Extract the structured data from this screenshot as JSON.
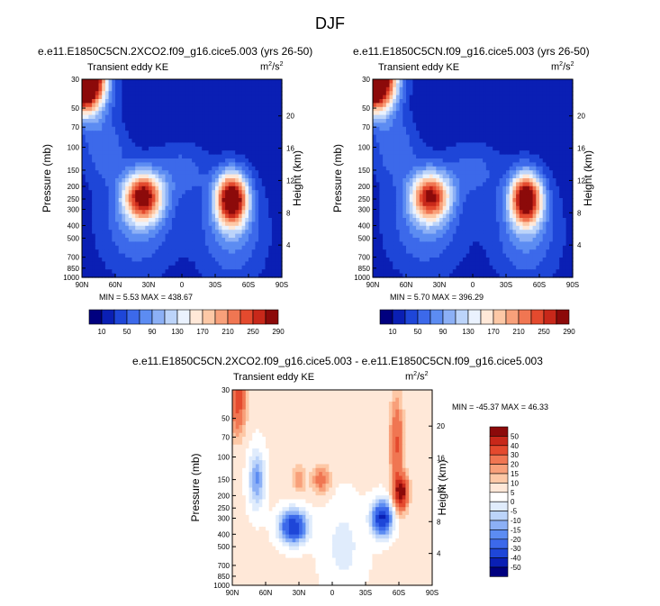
{
  "page": {
    "main_title": "DJF"
  },
  "palettes": {
    "ke": [
      "#00007f",
      "#0a1fb4",
      "#1e46d8",
      "#3c69ea",
      "#5c8cf2",
      "#8cb0f6",
      "#bcd4fa",
      "#eaf2fe",
      "#ffe8d8",
      "#fdc8a6",
      "#f8a07a",
      "#f07652",
      "#e44a2e",
      "#c8281a",
      "#8c0a0a"
    ],
    "diff": [
      "#00007f",
      "#0a1fb4",
      "#1e46d8",
      "#3c69ea",
      "#5c8cf2",
      "#8cb0f6",
      "#bcd4fa",
      "#e0ecfc",
      "#ffffff",
      "#ffe8d8",
      "#fdc8a6",
      "#f8a07a",
      "#f07652",
      "#e44a2e",
      "#c8281a",
      "#8c0a0a"
    ]
  },
  "panels": {
    "p1": {
      "subtitle": "e.e11.E1850C5CN.2XCO2.f09_g16.cice5.003 (yrs 26-50)",
      "left_label": "Transient eddy KE",
      "units": "m",
      "units_sup": "2",
      "units_tail": "/s",
      "units_sup2": "2",
      "stats": "MIN =   5.53  MAX = 438.67"
    },
    "p2": {
      "subtitle": "e.e11.E1850C5CN.f09_g16.cice5.003 (yrs 26-50)",
      "left_label": "Transient eddy KE",
      "units": "m",
      "units_sup": "2",
      "units_tail": "/s",
      "units_sup2": "2",
      "stats": "MIN =   5.70  MAX = 396.29"
    },
    "p3": {
      "subtitle": "e.e11.E1850C5CN.2XCO2.f09_g16.cice5.003 - e.e11.E1850C5CN.f09_g16.cice5.003",
      "left_label": "Transient eddy KE",
      "units": "m",
      "units_sup": "2",
      "units_tail": "/s",
      "units_sup2": "2",
      "stats": "MIN = -45.37  MAX =  46.33"
    }
  },
  "colorbars": {
    "ke": {
      "labels": [
        "10",
        "50",
        "90",
        "130",
        "170",
        "210",
        "250",
        "290"
      ]
    },
    "diff": {
      "labels": [
        "50",
        "40",
        "30",
        "20",
        "15",
        "10",
        "5",
        "0",
        "-5",
        "-10",
        "-15",
        "-20",
        "-30",
        "-40",
        "-50"
      ]
    }
  },
  "chart_data": [
    {
      "type": "heatmap",
      "title": "e.e11.E1850C5CN.2XCO2.f09_g16.cice5.003 (yrs 26-50)",
      "variable": "Transient eddy KE",
      "units": "m2/s2",
      "xlabel": "",
      "ylabel": "Pressure (mb)",
      "ylabel_right": "Height (km)",
      "x_ticks": [
        "90N",
        "60N",
        "30N",
        "0",
        "30S",
        "60S",
        "90S"
      ],
      "y_ticks": [
        "30",
        "50",
        "70",
        "100",
        "150",
        "200",
        "250",
        "300",
        "400",
        "500",
        "700",
        "850",
        "1000"
      ],
      "y_right_ticks": [
        "20",
        "16",
        "12",
        "8",
        "4"
      ],
      "xlim": [
        90,
        -90
      ],
      "ylim": [
        1000,
        30
      ],
      "min": 5.53,
      "max": 438.67,
      "levels": [
        10,
        30,
        50,
        70,
        90,
        110,
        130,
        150,
        170,
        190,
        210,
        230,
        250,
        270,
        290
      ],
      "features": [
        {
          "lat": 85,
          "p": 30,
          "value": 438
        },
        {
          "lat": 35,
          "p": 250,
          "value": 260
        },
        {
          "lat": -45,
          "p": 250,
          "value": 300
        }
      ]
    },
    {
      "type": "heatmap",
      "title": "e.e11.E1850C5CN.f09_g16.cice5.003 (yrs 26-50)",
      "variable": "Transient eddy KE",
      "units": "m2/s2",
      "ylabel": "Pressure (mb)",
      "ylabel_right": "Height (km)",
      "x_ticks": [
        "90N",
        "60N",
        "30N",
        "0",
        "30S",
        "60S",
        "90S"
      ],
      "y_ticks": [
        "30",
        "50",
        "70",
        "100",
        "150",
        "200",
        "250",
        "300",
        "400",
        "500",
        "700",
        "850",
        "1000"
      ],
      "y_right_ticks": [
        "20",
        "16",
        "12",
        "8",
        "4"
      ],
      "xlim": [
        90,
        -90
      ],
      "ylim": [
        1000,
        30
      ],
      "min": 5.7,
      "max": 396.29,
      "levels": [
        10,
        30,
        50,
        70,
        90,
        110,
        130,
        150,
        170,
        190,
        210,
        230,
        250,
        270,
        290
      ],
      "features": [
        {
          "lat": 85,
          "p": 30,
          "value": 396
        },
        {
          "lat": 38,
          "p": 250,
          "value": 240
        },
        {
          "lat": -48,
          "p": 270,
          "value": 290
        }
      ]
    },
    {
      "type": "heatmap",
      "title": "e.e11.E1850C5CN.2XCO2.f09_g16.cice5.003 - e.e11.E1850C5CN.f09_g16.cice5.003",
      "variable": "Transient eddy KE",
      "units": "m2/s2",
      "ylabel": "Pressure (mb)",
      "ylabel_right": "Height (km)",
      "x_ticks": [
        "90N",
        "60N",
        "30N",
        "0",
        "30S",
        "60S",
        "90S"
      ],
      "y_ticks": [
        "30",
        "50",
        "70",
        "100",
        "150",
        "200",
        "250",
        "300",
        "400",
        "500",
        "700",
        "850",
        "1000"
      ],
      "y_right_ticks": [
        "20",
        "16",
        "12",
        "8",
        "4"
      ],
      "xlim": [
        90,
        -90
      ],
      "ylim": [
        1000,
        30
      ],
      "min": -45.37,
      "max": 46.33,
      "levels": [
        -50,
        -40,
        -30,
        -20,
        -15,
        -10,
        -5,
        0,
        5,
        10,
        15,
        20,
        30,
        40,
        50
      ],
      "features": [
        {
          "lat": 85,
          "p": 35,
          "value": 30
        },
        {
          "lat": 35,
          "p": 350,
          "value": -35
        },
        {
          "lat": -45,
          "p": 300,
          "value": -45
        },
        {
          "lat": -62,
          "p": 200,
          "value": 46
        },
        {
          "lat": 10,
          "p": 150,
          "value": 20
        }
      ]
    }
  ]
}
